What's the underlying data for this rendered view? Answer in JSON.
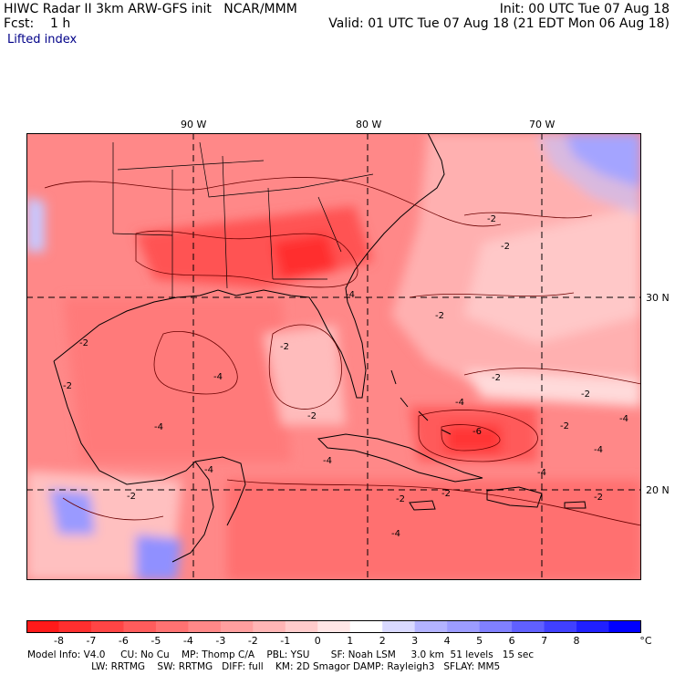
{
  "header": {
    "left_line1": "HIWC Radar II 3km ARW-GFS init   NCAR/MMM",
    "left_line2": "Fcst:    1 h",
    "right_line1": "Init: 00 UTC Tue 07 Aug 18",
    "right_line2": "Valid: 01 UTC Tue 07 Aug 18 (21 EDT Mon 06 Aug 18)",
    "field_name": "Lifted index"
  },
  "map": {
    "longitude_labels": [
      "90 W",
      "80 W",
      "70 W"
    ],
    "latitude_labels": [
      "30 N",
      "20 N"
    ],
    "contour_labels": [
      "-2",
      "-2",
      "-2",
      "-2",
      "-2",
      "-2",
      "-2",
      "-2",
      "-2",
      "-2",
      "-2",
      "-2",
      "-2",
      "-2",
      "-4",
      "-4",
      "-4",
      "-4",
      "-4",
      "-4",
      "-4",
      "-4",
      "-4",
      "-4",
      "-6"
    ]
  },
  "colorbar": {
    "ticks": [
      "-8",
      "-7",
      "-6",
      "-5",
      "-4",
      "-3",
      "-2",
      "-1",
      "0",
      "1",
      "2",
      "3",
      "4",
      "5",
      "6",
      "7",
      "8"
    ],
    "unit": "°C",
    "colors": [
      "#ff1a1a",
      "#ff2f2f",
      "#ff4545",
      "#ff5c5c",
      "#ff7272",
      "#ff8888",
      "#ff9f9f",
      "#ffb5b5",
      "#ffcccc",
      "#ffe6e6",
      "#ffffff",
      "#d9d9ff",
      "#b3b3ff",
      "#9c9cff",
      "#8080ff",
      "#6060ff",
      "#4040ff",
      "#2020ff",
      "#0000ff"
    ]
  },
  "footer": {
    "line1": "Model Info: V4.0     CU: No Cu    MP: Thomp C/A    PBL: YSU       SF: Noah LSM     3.0 km  51 levels   15 sec",
    "line2": "                     LW: RRTMG    SW: RRTMG   DIFF: full    KM: 2D Smagor DAMP: Rayleigh3   SFLAY: MM5"
  },
  "theme": {
    "land_outline": "#000000",
    "contour": "#6b0000",
    "gridline": "#000000"
  }
}
